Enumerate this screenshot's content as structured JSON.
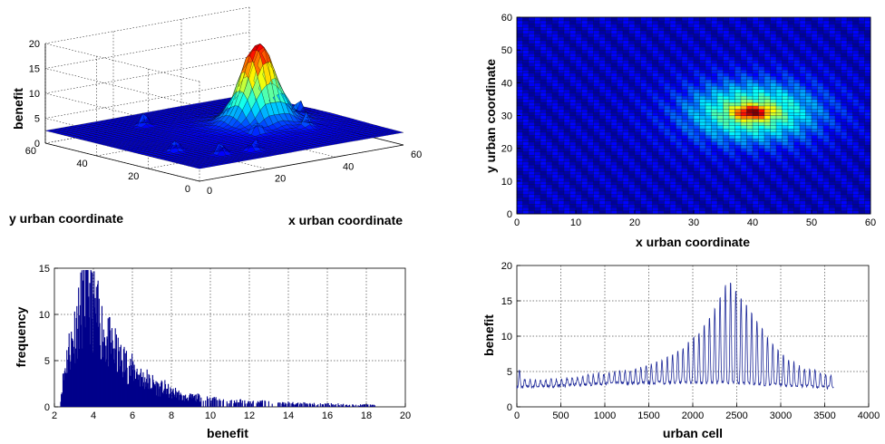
{
  "chart_data": [
    {
      "type": "surface3d",
      "xlabel": "x urban coordinate",
      "ylabel": "y urban coordinate",
      "zlabel": "benefit",
      "xlim": [
        0,
        60
      ],
      "ylim": [
        0,
        60
      ],
      "zlim": [
        0,
        20
      ],
      "xticks": [
        "0",
        "20",
        "40",
        "60"
      ],
      "yticks": [
        "0",
        "20",
        "40",
        "60"
      ],
      "zticks": [
        "0",
        "5",
        "10",
        "15",
        "20"
      ],
      "grid": true,
      "peak": {
        "x": 40,
        "y": 30,
        "z": 18
      },
      "baseline_z": 2.5,
      "colormap": "jet"
    },
    {
      "type": "heatmap",
      "xlabel": "x urban coordinate",
      "ylabel": "y urban coordinate",
      "xlim": [
        0,
        60
      ],
      "ylim": [
        0,
        60
      ],
      "xticks": [
        "0",
        "10",
        "20",
        "30",
        "40",
        "50",
        "60"
      ],
      "yticks": [
        "0",
        "10",
        "20",
        "30",
        "40",
        "50",
        "60"
      ],
      "hotspot": {
        "x": 40,
        "y": 31
      },
      "colormap": "jet"
    },
    {
      "type": "bar",
      "subtype": "histogram",
      "xlabel": "benefit",
      "ylabel": "frequency",
      "xlim": [
        2,
        20
      ],
      "ylim": [
        0,
        15
      ],
      "xticks": [
        "2",
        "4",
        "6",
        "8",
        "10",
        "12",
        "14",
        "16",
        "18",
        "20"
      ],
      "yticks": [
        "0",
        "5",
        "10",
        "15"
      ],
      "grid": true,
      "color": "#00008b",
      "bins_x": [
        2.3,
        2.5,
        2.7,
        2.9,
        3.1,
        3.3,
        3.5,
        3.7,
        3.9,
        4.1,
        4.3,
        4.5,
        4.7,
        4.9,
        5.1,
        5.3,
        5.5,
        5.7,
        5.9,
        6.1,
        6.3,
        6.5,
        6.7,
        6.9,
        7.1,
        7.3,
        7.5,
        7.7,
        7.9,
        8.1,
        8.3,
        8.5,
        8.7,
        8.9,
        9.1,
        9.3,
        9.5,
        9.7,
        9.9,
        10.5,
        11,
        11.5,
        12,
        12.5,
        13,
        13.5,
        14,
        14.5,
        15,
        15.5,
        16,
        16.5,
        17,
        17.5,
        18,
        18.5
      ],
      "bins_y": [
        1,
        4,
        6,
        7,
        9,
        10,
        12,
        13,
        11,
        10,
        9,
        8,
        7,
        6.5,
        6,
        5,
        5,
        4.5,
        4,
        4,
        3.5,
        3,
        3,
        2.5,
        2.5,
        2,
        2,
        2,
        1.5,
        1.5,
        1.5,
        1,
        1,
        1,
        1,
        1,
        1,
        0.8,
        0.8,
        0.7,
        0.6,
        0.6,
        0.5,
        0.5,
        0.5,
        0.4,
        0.4,
        0.4,
        0.3,
        0.3,
        0.3,
        0.3,
        0.2,
        0.2,
        0.2,
        0.2
      ]
    },
    {
      "type": "line",
      "xlabel": "urban cell",
      "ylabel": "benefit",
      "xlim": [
        0,
        4000
      ],
      "ylim": [
        0,
        20
      ],
      "xticks": [
        "0",
        "500",
        "1000",
        "1500",
        "2000",
        "2500",
        "3000",
        "3500",
        "4000"
      ],
      "yticks": [
        "0",
        "5",
        "10",
        "15",
        "20"
      ],
      "grid": true,
      "color": "#1f2a9a",
      "period": 60,
      "n_cells": 3600,
      "envelope": {
        "x": [
          0,
          60,
          200,
          500,
          900,
          1200,
          1500,
          1800,
          2100,
          2300,
          2400,
          2600,
          2800,
          3000,
          3200,
          3400,
          3600
        ],
        "y": [
          6.2,
          4.0,
          3.7,
          3.9,
          4.6,
          5.0,
          5.8,
          7.5,
          11,
          15.5,
          18.5,
          15,
          11,
          7.5,
          5.8,
          5.2,
          4.5
        ]
      },
      "trough": {
        "x": [
          0,
          500,
          1000,
          1500,
          2000,
          2400,
          2800,
          3200,
          3600
        ],
        "y": [
          2.8,
          3.0,
          3.3,
          3.4,
          3.4,
          3.4,
          3.2,
          3.0,
          2.7
        ]
      }
    }
  ]
}
